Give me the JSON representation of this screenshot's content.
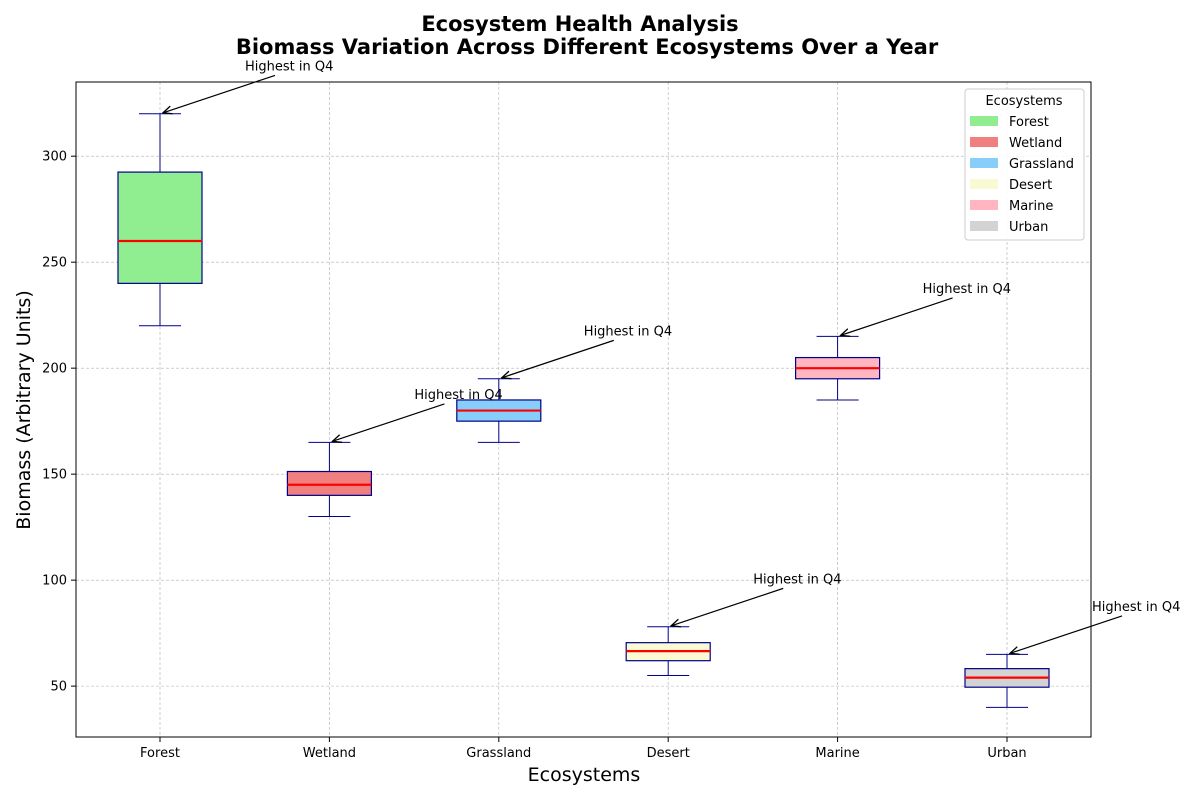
{
  "chart_data": {
    "type": "box",
    "title": "Ecosystem Health Analysis",
    "subtitle": "Biomass Variation Across Different Ecosystems Over a Year",
    "xlabel": "Ecosystems",
    "ylabel": "Biomass (Arbitrary Units)",
    "ylim": [
      26,
      335
    ],
    "yticks": [
      50,
      100,
      150,
      200,
      250,
      300
    ],
    "grid": true,
    "legend": {
      "title": "Ecosystems",
      "placement": "top-right"
    },
    "median_color": "#ff0000",
    "box_edge_color": "#00008b",
    "categories": [
      "Forest",
      "Wetland",
      "Grassland",
      "Desert",
      "Marine",
      "Urban"
    ],
    "series": [
      {
        "name": "Forest",
        "color": "#90ee90",
        "min": 220,
        "q1": 240,
        "median": 260,
        "q3": 292.5,
        "max": 320
      },
      {
        "name": "Wetland",
        "color": "#f08080",
        "min": 130,
        "q1": 140,
        "median": 145,
        "q3": 151.25,
        "max": 165
      },
      {
        "name": "Grassland",
        "color": "#87cefa",
        "min": 165,
        "q1": 175,
        "median": 180,
        "q3": 185,
        "max": 195
      },
      {
        "name": "Desert",
        "color": "#fafad2",
        "min": 55,
        "q1": 62,
        "median": 66.5,
        "q3": 70.5,
        "max": 78
      },
      {
        "name": "Marine",
        "color": "#ffb6c1",
        "min": 185,
        "q1": 195,
        "median": 200,
        "q3": 205,
        "max": 215
      },
      {
        "name": "Urban",
        "color": "#d3d3d3",
        "min": 40,
        "q1": 49.5,
        "median": 54,
        "q3": 58.25,
        "max": 65
      }
    ],
    "annotations": [
      {
        "category": "Forest",
        "text": "Highest in Q4",
        "value": 320,
        "text_value": 340
      },
      {
        "category": "Wetland",
        "text": "Highest in Q4",
        "value": 165,
        "text_value": 185
      },
      {
        "category": "Grassland",
        "text": "Highest in Q4",
        "value": 195,
        "text_value": 215
      },
      {
        "category": "Desert",
        "text": "Highest in Q4",
        "value": 78,
        "text_value": 98
      },
      {
        "category": "Marine",
        "text": "Highest in Q4",
        "value": 215,
        "text_value": 235
      },
      {
        "category": "Urban",
        "text": "Highest in Q4",
        "value": 65,
        "text_value": 85
      }
    ]
  }
}
